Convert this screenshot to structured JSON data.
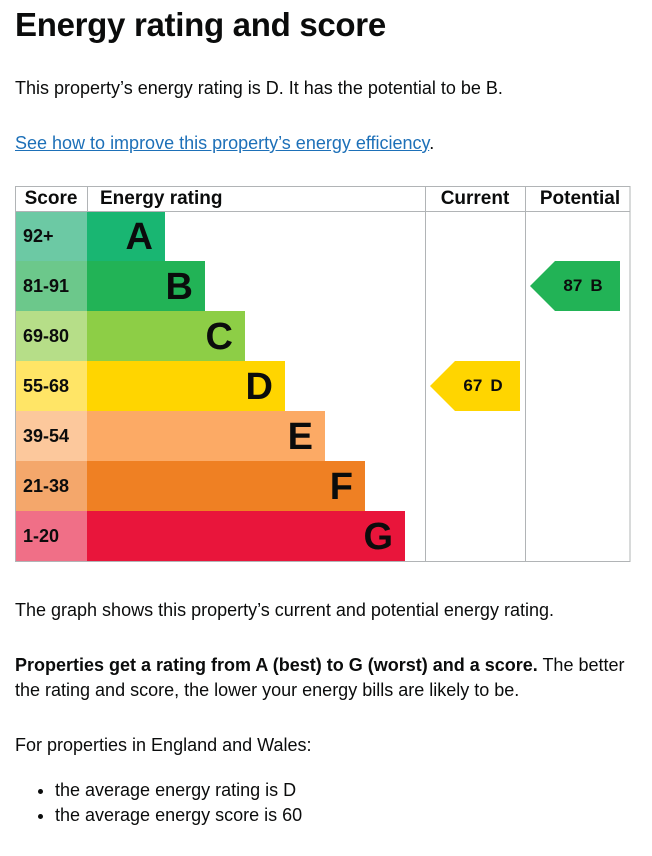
{
  "heading": "Energy rating and score",
  "intro": "This property’s energy rating is D. It has the potential to be B.",
  "link": {
    "text": "See how to improve this property’s energy efficiency",
    "suffix": "."
  },
  "graph": {
    "headers": [
      "Score",
      "Energy rating",
      "Current",
      "Potential"
    ],
    "bands": [
      {
        "score": "92+",
        "rating": "A",
        "color": "#19b672",
        "score_color": "#6cc9a4"
      },
      {
        "score": "81-91",
        "rating": "B",
        "color": "#22b356",
        "score_color": "#6cc88b"
      },
      {
        "score": "69-80",
        "rating": "C",
        "color": "#8dce46",
        "score_color": "#b6de88"
      },
      {
        "score": "55-68",
        "rating": "D",
        "color": "#ffd500",
        "score_color": "#ffe566"
      },
      {
        "score": "39-54",
        "rating": "E",
        "color": "#fcaa65",
        "score_color": "#fcc89c"
      },
      {
        "score": "21-38",
        "rating": "F",
        "color": "#ef8023",
        "score_color": "#f4a76b"
      },
      {
        "score": "1-20",
        "rating": "G",
        "color": "#e9153b",
        "score_color": "#f06f87"
      }
    ],
    "current": {
      "score": 67,
      "rating": "D"
    },
    "potential": {
      "score": 87,
      "rating": "B"
    }
  },
  "explanation": "The graph shows this property’s current and potential energy rating.",
  "rating_note": {
    "bold": "Properties get a rating from A (best) to G (worst) and a score.",
    "text": "The better the rating and score, the lower your energy bills are likely to be."
  },
  "average": {
    "intro": "For properties in England and Wales:",
    "items": [
      "the average energy rating is D",
      "the average energy score is 60"
    ]
  }
}
